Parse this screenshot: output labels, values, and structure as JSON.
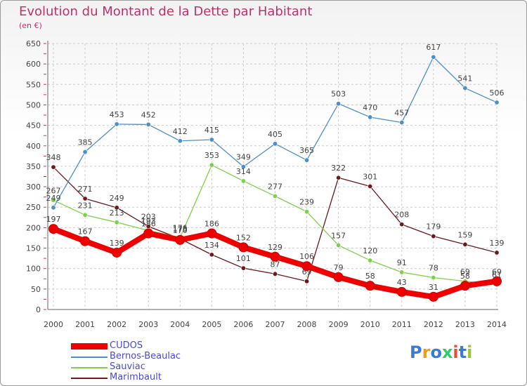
{
  "title": "Evolution du Montant de la Dette par Habitant",
  "subtitle": "(en €)",
  "logo": {
    "text": "Proxiti",
    "colors": [
      "#3a7bd5",
      "#f39c12",
      "#3a7bd5",
      "#2ecc71",
      "#e74c3c",
      "#3a7bd5",
      "#9bc43a"
    ]
  },
  "chart_data": {
    "type": "line",
    "categories": [
      "2000",
      "2001",
      "2002",
      "2003",
      "2004",
      "2005",
      "2006",
      "2007",
      "2008",
      "2009",
      "2010",
      "2011",
      "2012",
      "2013",
      "2014"
    ],
    "ylim": [
      0,
      650
    ],
    "yticks": [
      0,
      50,
      100,
      150,
      200,
      250,
      300,
      350,
      400,
      450,
      500,
      550,
      600,
      650
    ],
    "grid": true,
    "legend_position": "bottom-left",
    "series": [
      {
        "name": "CUDOS",
        "color": "#ee0000",
        "values": [
          197,
          167,
          139,
          186,
          170,
          186,
          152,
          129,
          106,
          79,
          58,
          43,
          31,
          58,
          69
        ]
      },
      {
        "name": "Bernos-Beaulac",
        "color": "#4d8fca",
        "values": [
          249,
          385,
          453,
          452,
          412,
          415,
          349,
          405,
          365,
          503,
          470,
          457,
          617,
          541,
          506
        ]
      },
      {
        "name": "Sauviac",
        "color": "#7ed048",
        "values": [
          267,
          231,
          213,
          193,
          176,
          353,
          314,
          277,
          239,
          157,
          120,
          91,
          78,
          69,
          61
        ]
      },
      {
        "name": "Marimbault",
        "color": "#6a1a1a",
        "values": [
          348,
          271,
          249,
          203,
          173,
          134,
          101,
          87,
          69,
          322,
          301,
          208,
          179,
          159,
          139
        ]
      }
    ]
  }
}
